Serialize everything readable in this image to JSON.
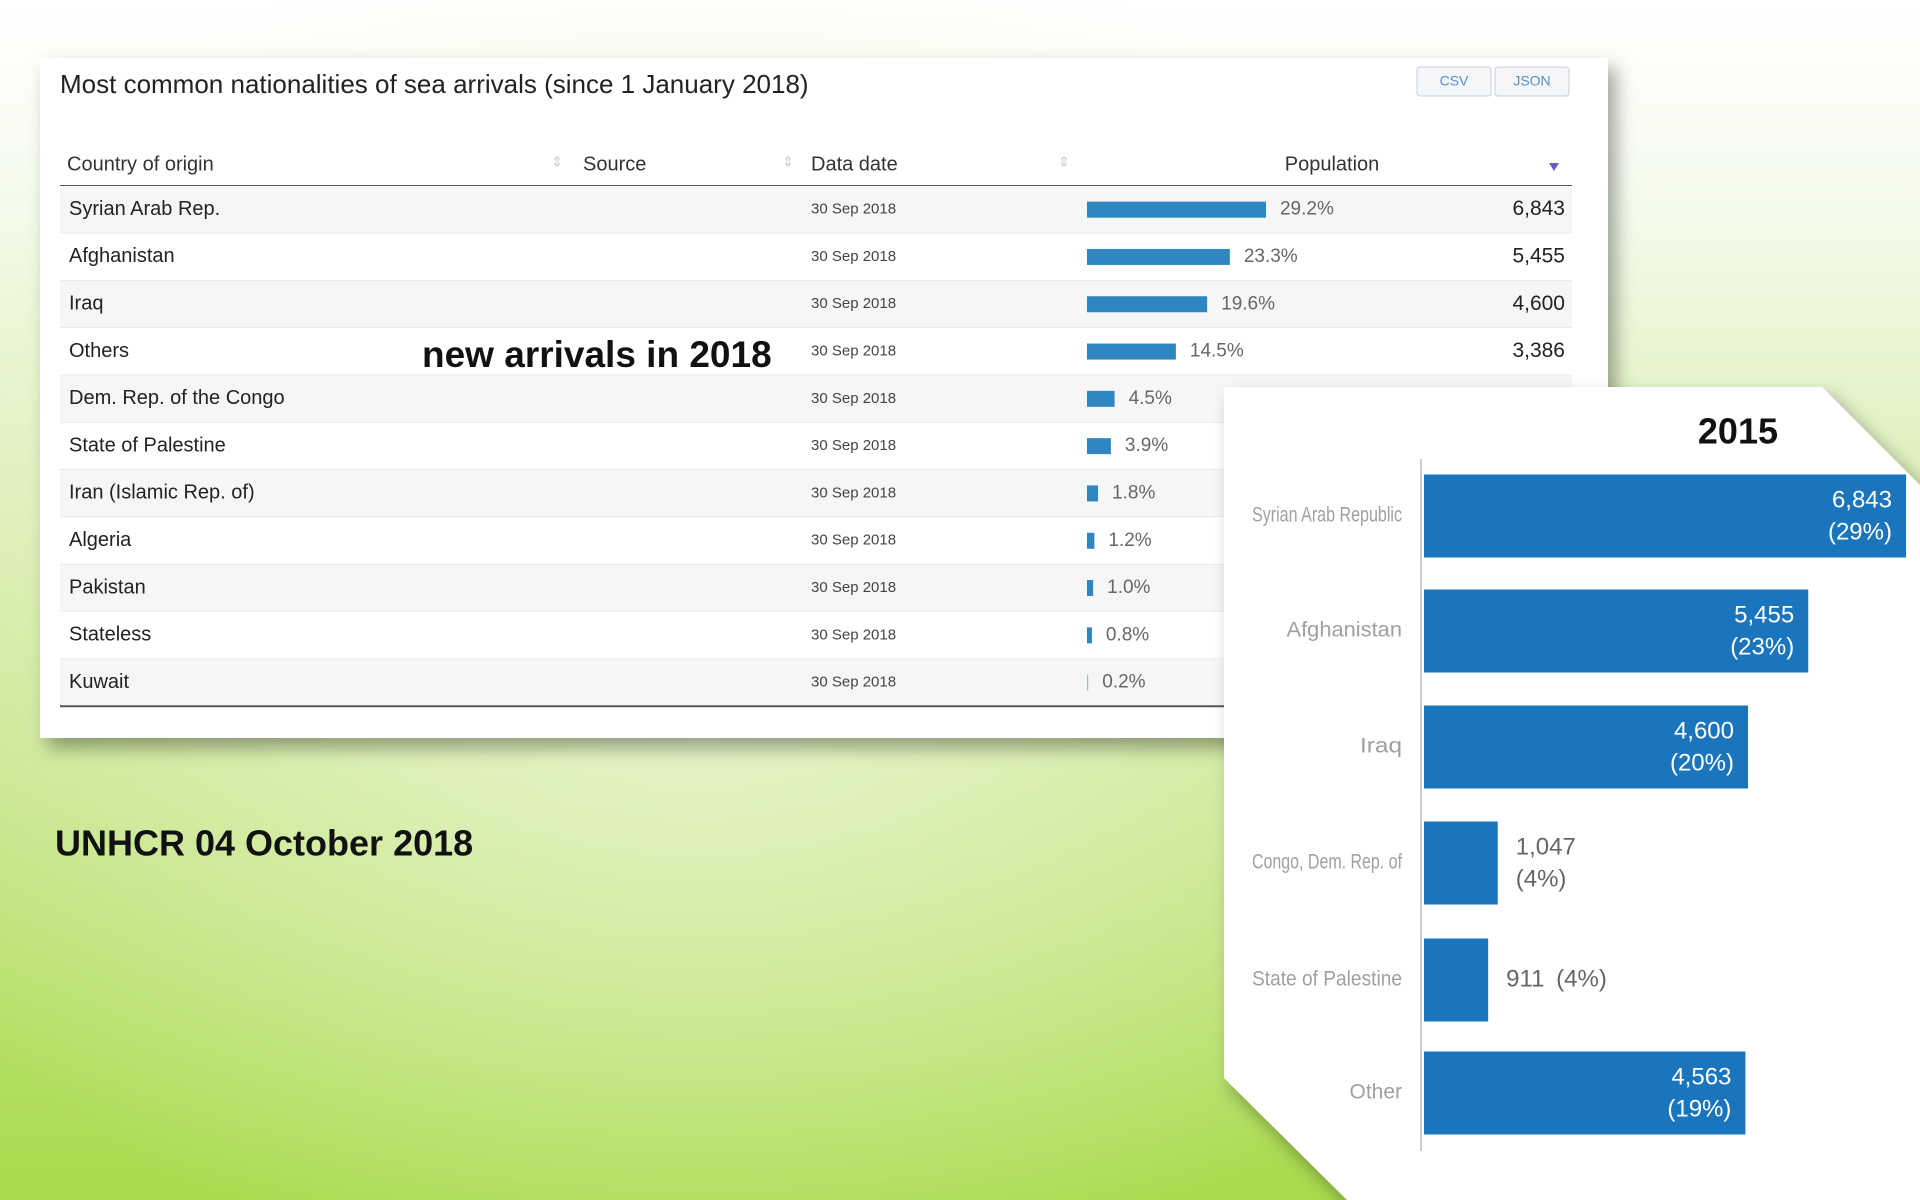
{
  "slide": {
    "table": {
      "title": "Most common nationalities of sea arrivals (since 1 January 2018)",
      "buttons": [
        "CSV",
        "JSON"
      ],
      "header": [
        "Country of origin",
        "Source",
        "Data date",
        "Population"
      ],
      "rows": [
        {
          "country": "Syrian Arab Rep.",
          "date": "30 Sep 2018",
          "share": 29.2,
          "share_label": "29.2%",
          "population": "6,843"
        },
        {
          "country": "Afghanistan",
          "date": "30 Sep 2018",
          "share": 23.3,
          "share_label": "23.3%",
          "population": "5,455"
        },
        {
          "country": "Iraq",
          "date": "30 Sep 2018",
          "share": 19.6,
          "share_label": "19.6%",
          "population": "4,600"
        },
        {
          "country": "Others",
          "date": "30 Sep 2018",
          "share": 14.5,
          "share_label": "14.5%",
          "population": "3,386"
        },
        {
          "country": "Dem. Rep. of the Congo",
          "date": "30 Sep 2018",
          "share": 4.5,
          "share_label": "4.5%"
        },
        {
          "country": "State of Palestine",
          "date": "30 Sep 2018",
          "share": 3.9,
          "share_label": "3.9%"
        },
        {
          "country": "Iran (Islamic Rep. of)",
          "date": "30 Sep 2018",
          "share": 1.8,
          "share_label": "1.8%"
        },
        {
          "country": "Algeria",
          "date": "30 Sep 2018",
          "share": 1.2,
          "share_label": "1.2%"
        },
        {
          "country": "Pakistan",
          "date": "30 Sep 2018",
          "share": 1.0,
          "share_label": "1.0%"
        },
        {
          "country": "Stateless",
          "date": "30 Sep 2018",
          "share": 0.8,
          "share_label": "0.8%"
        },
        {
          "country": "Kuwait",
          "date": "30 Sep 2018",
          "share": 0.2,
          "share_label": "0.2%"
        }
      ]
    },
    "caption": "new arrivals in 2018",
    "footer": "UNHCR 04 October 2018"
  },
  "chart_data": {
    "type": "bar",
    "title": "2015",
    "orientation": "horizontal",
    "color": "#1a75bc",
    "categories": [
      "Syrian Arab Republic",
      "Afghanistan",
      "Iraq",
      "Congo, Dem. Rep. of",
      "State of Palestine",
      "Other"
    ],
    "values": [
      6843,
      5455,
      4600,
      1047,
      911,
      4563
    ],
    "value_labels": [
      "6,843",
      "5,455",
      "4,600",
      "1,047",
      "911",
      "4,563"
    ],
    "percent_labels": [
      "(29%)",
      "(23%)",
      "(20%)",
      "(4%)",
      "(4%)",
      "(19%)"
    ]
  }
}
